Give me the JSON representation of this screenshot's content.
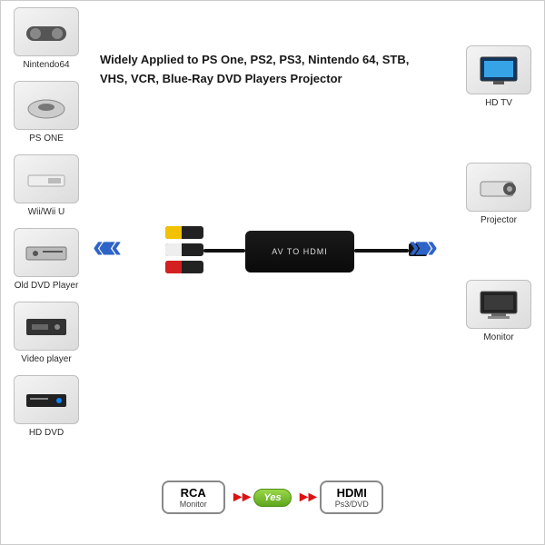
{
  "headline": {
    "line1": "Widely Applied to PS One, PS2, PS3, Nintendo 64, STB,",
    "line2": "VHS, VCR, Blue-Ray DVD Players Projector"
  },
  "left_devices": [
    {
      "label": "Nintendo64",
      "icon": "gamepad"
    },
    {
      "label": "PS ONE",
      "icon": "console-round"
    },
    {
      "label": "Wii/Wii U",
      "icon": "console-flat"
    },
    {
      "label": "Old DVD Player",
      "icon": "dvd"
    },
    {
      "label": "Video player",
      "icon": "vcr"
    },
    {
      "label": "HD DVD",
      "icon": "hddvd"
    }
  ],
  "right_devices": [
    {
      "label": "HD TV",
      "icon": "tv"
    },
    {
      "label": "Projector",
      "icon": "projector"
    },
    {
      "label": "Monitor",
      "icon": "monitor"
    }
  ],
  "center": {
    "device_label": "AV TO HDMI",
    "rca_colors": [
      "#f2c200",
      "#eeeeee",
      "#d32020"
    ],
    "arrow_color": "#2e63c8",
    "chevron_glyph": "»»»"
  },
  "bottom": {
    "left_top": "RCA",
    "left_sub": "Monitor",
    "yes": "Yes",
    "right_top": "HDMI",
    "right_sub": "Ps3/DVD",
    "red_arrow": "►►"
  },
  "style": {
    "canvas_bg": "#ffffff",
    "device_box_bg1": "#f4f4f4",
    "device_box_bg2": "#dcdcdc",
    "device_border": "#bfbfbf",
    "label_color": "#2b2b2b",
    "headline_color": "#181818",
    "label_fontsize": 10,
    "headline_fontsize": 13,
    "yes_bg1": "#9bd84a",
    "yes_bg2": "#5ea61d",
    "red_arrow_color": "#d11"
  }
}
